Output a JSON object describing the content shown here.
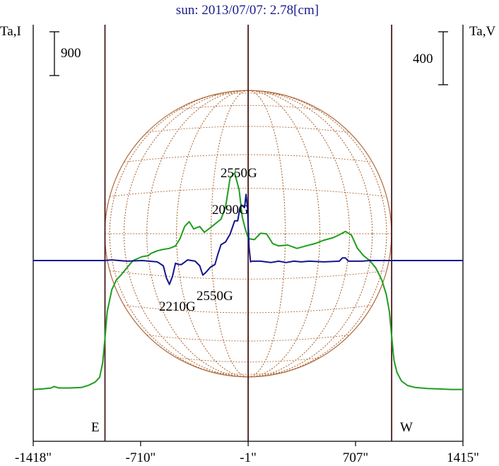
{
  "chart_data": {
    "type": "line",
    "title": "sun: 2013/07/07: 2.78[cm]",
    "left_axis_label": "Ta,I",
    "right_axis_label": "Ta,V",
    "left_scale_label": "900",
    "right_scale_label": "400",
    "xlim": [
      -1418,
      1415
    ],
    "x_ticks": [
      {
        "value": -1418,
        "label": "-1418\""
      },
      {
        "value": -710,
        "label": "-710\""
      },
      {
        "value": -1,
        "label": "-1\""
      },
      {
        "value": 707,
        "label": "707\""
      },
      {
        "value": 1415,
        "label": "1415\""
      }
    ],
    "limb_markers": [
      {
        "label": "E",
        "x": -945
      },
      {
        "label": "W",
        "x": 945
      }
    ],
    "center_x": -1,
    "disk_radius": 945,
    "series": [
      {
        "key": "intensity",
        "color": "#1e9e1e",
        "x": [
          -1418,
          -1360,
          -1300,
          -1280,
          -1250,
          -1180,
          -1100,
          -1050,
          -1010,
          -980,
          -960,
          -945,
          -930,
          -900,
          -870,
          -840,
          -800,
          -760,
          -700,
          -660,
          -640,
          -600,
          -560,
          -520,
          -480,
          -450,
          -420,
          -390,
          -360,
          -320,
          -290,
          -260,
          -220,
          -180,
          -150,
          -120,
          -90,
          -60,
          -40,
          -20,
          0,
          40,
          80,
          120,
          160,
          200,
          260,
          320,
          380,
          440,
          500,
          560,
          600,
          640,
          680,
          720,
          760,
          800,
          840,
          880,
          910,
          930,
          945,
          960,
          980,
          1010,
          1050,
          1100,
          1180,
          1260,
          1340,
          1415
        ],
        "values": [
          -2650,
          -2640,
          -2620,
          -2590,
          -2620,
          -2620,
          -2610,
          -2560,
          -2500,
          -2400,
          -2100,
          -1600,
          -1050,
          -600,
          -400,
          -300,
          -150,
          0,
          80,
          100,
          150,
          200,
          230,
          250,
          300,
          450,
          700,
          800,
          650,
          700,
          580,
          650,
          750,
          850,
          1100,
          1700,
          1800,
          1450,
          900,
          650,
          450,
          430,
          560,
          550,
          350,
          300,
          320,
          250,
          300,
          350,
          420,
          470,
          530,
          600,
          520,
          250,
          100,
          0,
          -150,
          -400,
          -700,
          -1050,
          -1550,
          -2050,
          -2300,
          -2480,
          -2570,
          -2610,
          -2630,
          -2640,
          -2650,
          -2650
        ]
      },
      {
        "key": "polarization",
        "color": "#14148c",
        "x": [
          -1418,
          -950,
          -900,
          -800,
          -700,
          -600,
          -560,
          -540,
          -520,
          -500,
          -480,
          -460,
          -440,
          -400,
          -350,
          -320,
          -300,
          -280,
          -250,
          -220,
          -200,
          -180,
          -150,
          -120,
          -90,
          -70,
          -55,
          -45,
          -35,
          -25,
          -15,
          -5,
          0,
          5,
          15,
          25,
          40,
          80,
          150,
          200,
          250,
          300,
          350,
          400,
          500,
          600,
          620,
          640,
          660,
          700,
          750,
          800,
          900,
          950,
          1000,
          1415
        ],
        "values": [
          0,
          0,
          5,
          -5,
          0,
          -10,
          -40,
          -130,
          -180,
          -120,
          -20,
          -30,
          -30,
          5,
          -5,
          -40,
          -110,
          -90,
          -50,
          -30,
          50,
          120,
          140,
          200,
          300,
          300,
          400,
          420,
          410,
          400,
          500,
          400,
          250,
          100,
          -10,
          -5,
          -5,
          -5,
          -15,
          -5,
          -15,
          -5,
          -10,
          -5,
          -10,
          -5,
          20,
          20,
          -5,
          -5,
          -5,
          0,
          0,
          0,
          0,
          0
        ]
      }
    ],
    "annotations": [
      "2550G",
      "2090G",
      "2210G",
      "2550G"
    ]
  }
}
